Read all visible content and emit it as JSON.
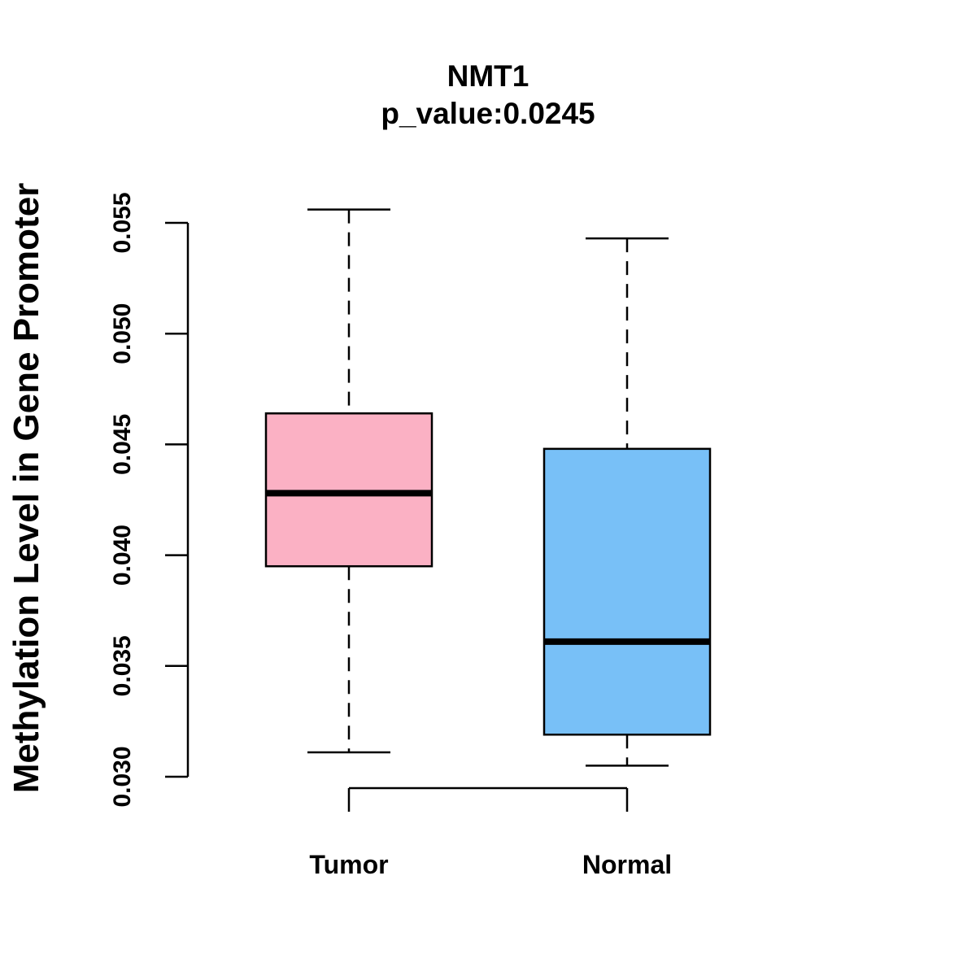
{
  "chart_data": {
    "type": "boxplot",
    "title": "NMT1",
    "subtitle": "p_value:0.0245",
    "xlabel": "",
    "ylabel": "Methylation Level in Gene Promoter",
    "ylim": [
      0.03,
      0.055
    ],
    "yticks": [
      0.03,
      0.035,
      0.04,
      0.045,
      0.05,
      0.055
    ],
    "ytick_labels": [
      "0.030",
      "0.035",
      "0.040",
      "0.045",
      "0.050",
      "0.055"
    ],
    "categories": [
      "Tumor",
      "Normal"
    ],
    "series": [
      {
        "name": "Tumor",
        "color": "#FBB1C4",
        "whisker_low": 0.0311,
        "q1": 0.0395,
        "median": 0.0428,
        "q3": 0.0464,
        "whisker_high": 0.0556
      },
      {
        "name": "Normal",
        "color": "#78C0F7",
        "whisker_low": 0.0305,
        "q1": 0.0319,
        "median": 0.0361,
        "q3": 0.0448,
        "whisker_high": 0.0543
      }
    ]
  }
}
